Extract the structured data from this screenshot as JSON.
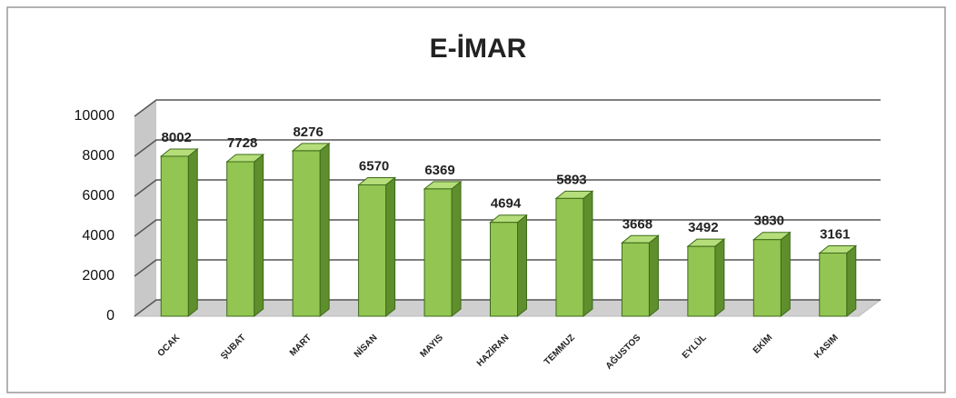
{
  "chart_data": {
    "type": "bar",
    "title": "E-İMAR",
    "categories": [
      "OCAK",
      "ŞUBAT",
      "MART",
      "NİSAN",
      "MAYIS",
      "HAZİRAN",
      "TEMMUZ",
      "AĞUSTOS",
      "EYLÜL",
      "EKİM",
      "KASIM"
    ],
    "values": [
      8002,
      7728,
      8276,
      6570,
      6369,
      4694,
      5893,
      3668,
      3492,
      3830,
      3161
    ],
    "color": "#93c552",
    "ylim": [
      0,
      10000
    ],
    "yticks": [
      0,
      2000,
      4000,
      6000,
      8000,
      10000
    ],
    "grid": true
  }
}
